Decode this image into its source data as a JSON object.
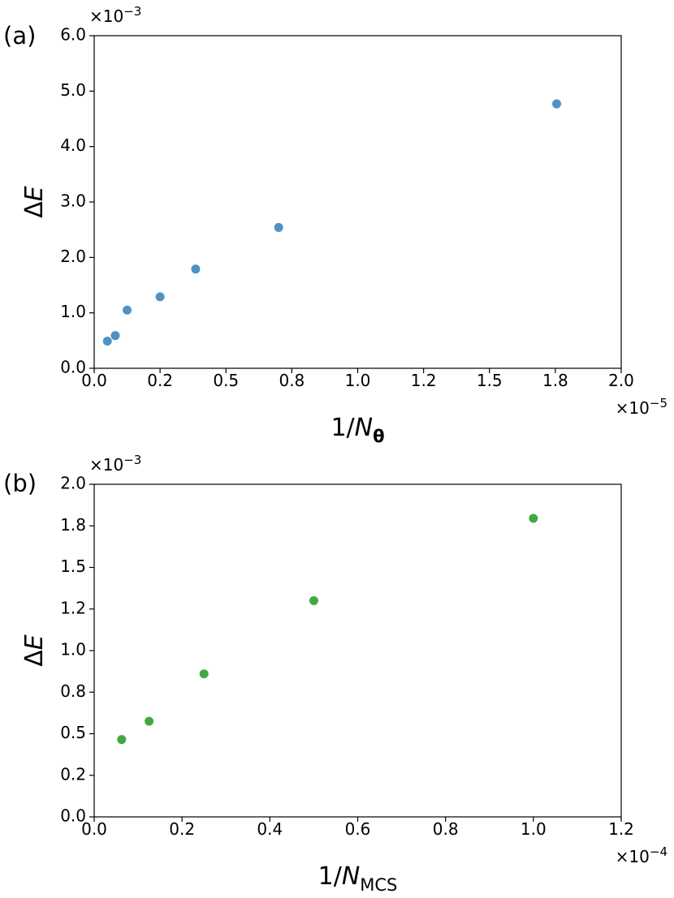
{
  "chart_data": [
    {
      "type": "scatter",
      "panel_label": "(a)",
      "xlabel": {
        "main": "1/",
        "var": "N",
        "sub": "θ"
      },
      "ylabel": {
        "delta": "Δ",
        "var": "E"
      },
      "x_multiplier": {
        "base": "×10",
        "exp": "−5"
      },
      "y_multiplier": {
        "base": "×10",
        "exp": "−3"
      },
      "xlim": [
        0,
        2.0
      ],
      "ylim": [
        0,
        6.0
      ],
      "x_ticks": [
        0.0,
        0.25,
        0.5,
        0.75,
        1.0,
        1.25,
        1.5,
        1.75,
        2.0
      ],
      "x_tick_labels": [
        "0.0",
        "0.2",
        "0.5",
        "0.8",
        "1.0",
        "1.2",
        "1.5",
        "1.8",
        "2.0"
      ],
      "y_ticks": [
        0,
        1,
        2,
        3,
        4,
        5,
        6
      ],
      "y_tick_labels": [
        "0.0",
        "1.0",
        "2.0",
        "3.0",
        "4.0",
        "5.0",
        "6.0"
      ],
      "color": "#3b86c0",
      "points": [
        {
          "x": 0.05,
          "y": 0.49
        },
        {
          "x": 0.08,
          "y": 0.59
        },
        {
          "x": 0.125,
          "y": 1.05
        },
        {
          "x": 0.25,
          "y": 1.29
        },
        {
          "x": 0.385,
          "y": 1.79
        },
        {
          "x": 0.7,
          "y": 2.54
        },
        {
          "x": 1.755,
          "y": 4.77
        }
      ]
    },
    {
      "type": "scatter",
      "panel_label": "(b)",
      "xlabel": {
        "main": "1/",
        "var": "N",
        "sub": "MCS"
      },
      "ylabel": {
        "delta": "Δ",
        "var": "E"
      },
      "x_multiplier": {
        "base": "×10",
        "exp": "−4"
      },
      "y_multiplier": {
        "base": "×10",
        "exp": "−3"
      },
      "xlim": [
        0,
        1.2
      ],
      "ylim": [
        0,
        2.0
      ],
      "x_ticks": [
        0.0,
        0.2,
        0.4,
        0.6,
        0.8,
        1.0,
        1.2
      ],
      "x_tick_labels": [
        "0.0",
        "0.2",
        "0.4",
        "0.6",
        "0.8",
        "1.0",
        "1.2"
      ],
      "y_ticks": [
        0,
        0.25,
        0.5,
        0.75,
        1.0,
        1.25,
        1.5,
        1.75,
        2.0
      ],
      "y_tick_labels": [
        "0.0",
        "0.2",
        "0.5",
        "0.8",
        "1.0",
        "1.2",
        "1.5",
        "1.8",
        "2.0"
      ],
      "color": "#2ca02c",
      "points": [
        {
          "x": 0.0625,
          "y": 0.465
        },
        {
          "x": 0.125,
          "y": 0.575
        },
        {
          "x": 0.25,
          "y": 0.86
        },
        {
          "x": 0.5,
          "y": 1.3
        },
        {
          "x": 1.0,
          "y": 1.795
        }
      ]
    }
  ]
}
